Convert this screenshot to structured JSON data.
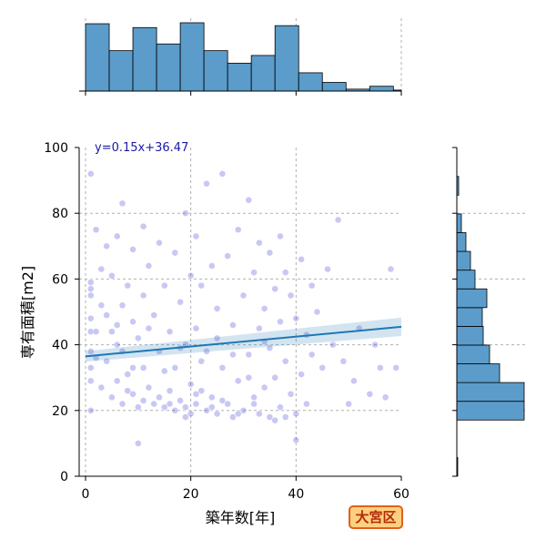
{
  "chart_data": {
    "type": "scatter",
    "title": "",
    "xlabel": "築年数[年]",
    "ylabel": "専有面積[m2]",
    "xlim": [
      0,
      60
    ],
    "ylim": [
      0,
      100
    ],
    "x_ticks": [
      0,
      20,
      40,
      60
    ],
    "y_ticks": [
      0,
      20,
      40,
      60,
      80,
      100
    ],
    "grid": true,
    "regression": {
      "label": "y=0.15x+36.47",
      "slope": 0.15,
      "intercept": 36.47
    },
    "point_color": "#3b3bd6",
    "line_color": "#1f77b4",
    "hist_color": "#5b9ccb",
    "x_histogram": {
      "bin_edges": [
        0,
        4.5,
        9,
        13.5,
        18,
        22.5,
        27,
        31.5,
        36,
        40.5,
        45,
        49.5,
        54,
        58.5,
        60
      ],
      "heights": [
        70,
        42,
        66,
        49,
        71,
        42,
        29,
        37,
        68,
        19,
        9,
        2,
        5,
        1
      ]
    },
    "y_histogram": {
      "bin_edges": [
        0,
        5.7,
        11.4,
        17.1,
        22.8,
        28.5,
        34.2,
        39.9,
        45.6,
        51.3,
        57,
        62.7,
        68.4,
        74.1,
        79.8,
        85.5,
        91.2,
        96.9
      ],
      "heights": [
        1,
        0,
        0,
        74,
        74,
        47,
        36,
        29,
        28,
        33,
        20,
        15,
        10,
        5,
        0,
        2,
        0
      ]
    },
    "points": [
      [
        1,
        92
      ],
      [
        1,
        59
      ],
      [
        1,
        57
      ],
      [
        1,
        55
      ],
      [
        1,
        48
      ],
      [
        1,
        44
      ],
      [
        1,
        38
      ],
      [
        1,
        33
      ],
      [
        1,
        29
      ],
      [
        1,
        20
      ],
      [
        2,
        75
      ],
      [
        2,
        44
      ],
      [
        2,
        36
      ],
      [
        3,
        63
      ],
      [
        3,
        27
      ],
      [
        4,
        70
      ],
      [
        4,
        49
      ],
      [
        4,
        35
      ],
      [
        5,
        61
      ],
      [
        5,
        44
      ],
      [
        5,
        24
      ],
      [
        6,
        73
      ],
      [
        6,
        46
      ],
      [
        6,
        29
      ],
      [
        7,
        83
      ],
      [
        7,
        52
      ],
      [
        7,
        38
      ],
      [
        7,
        22
      ],
      [
        8,
        58
      ],
      [
        8,
        31
      ],
      [
        9,
        69
      ],
      [
        9,
        47
      ],
      [
        9,
        25
      ],
      [
        10,
        10
      ],
      [
        10,
        42
      ],
      [
        10,
        21
      ],
      [
        11,
        76
      ],
      [
        11,
        55
      ],
      [
        11,
        33
      ],
      [
        12,
        64
      ],
      [
        12,
        27
      ],
      [
        13,
        49
      ],
      [
        13,
        22
      ],
      [
        14,
        71
      ],
      [
        14,
        38
      ],
      [
        15,
        58
      ],
      [
        15,
        21
      ],
      [
        16,
        44
      ],
      [
        16,
        26
      ],
      [
        17,
        68
      ],
      [
        17,
        33
      ],
      [
        17,
        20
      ],
      [
        18,
        53
      ],
      [
        18,
        23
      ],
      [
        19,
        80
      ],
      [
        19,
        40
      ],
      [
        19,
        18
      ],
      [
        20,
        61
      ],
      [
        20,
        28
      ],
      [
        20,
        19
      ],
      [
        21,
        73
      ],
      [
        21,
        45
      ],
      [
        21,
        22
      ],
      [
        22,
        58
      ],
      [
        22,
        26
      ],
      [
        23,
        89
      ],
      [
        23,
        38
      ],
      [
        23,
        20
      ],
      [
        24,
        64
      ],
      [
        24,
        24
      ],
      [
        25,
        51
      ],
      [
        25,
        19
      ],
      [
        26,
        92
      ],
      [
        26,
        33
      ],
      [
        27,
        67
      ],
      [
        27,
        22
      ],
      [
        28,
        46
      ],
      [
        28,
        18
      ],
      [
        29,
        75
      ],
      [
        29,
        29
      ],
      [
        30,
        55
      ],
      [
        30,
        20
      ],
      [
        31,
        84
      ],
      [
        31,
        37
      ],
      [
        32,
        62
      ],
      [
        32,
        24
      ],
      [
        33,
        71
      ],
      [
        33,
        45
      ],
      [
        33,
        19
      ],
      [
        34,
        51
      ],
      [
        34,
        27
      ],
      [
        35,
        68
      ],
      [
        35,
        39
      ],
      [
        35,
        18
      ],
      [
        36,
        57
      ],
      [
        36,
        30
      ],
      [
        36,
        17
      ],
      [
        37,
        73
      ],
      [
        37,
        47
      ],
      [
        37,
        21
      ],
      [
        38,
        62
      ],
      [
        38,
        35
      ],
      [
        38,
        18
      ],
      [
        39,
        55
      ],
      [
        39,
        25
      ],
      [
        40,
        11
      ],
      [
        40,
        48
      ],
      [
        40,
        19
      ],
      [
        41,
        66
      ],
      [
        41,
        31
      ],
      [
        42,
        43
      ],
      [
        42,
        22
      ],
      [
        43,
        58
      ],
      [
        43,
        37
      ],
      [
        44,
        50
      ],
      [
        45,
        33
      ],
      [
        46,
        63
      ],
      [
        47,
        40
      ],
      [
        48,
        78
      ],
      [
        49,
        35
      ],
      [
        50,
        22
      ],
      [
        51,
        29
      ],
      [
        52,
        45
      ],
      [
        54,
        25
      ],
      [
        55,
        40
      ],
      [
        56,
        33
      ],
      [
        57,
        24
      ],
      [
        58,
        63
      ],
      [
        59,
        33
      ],
      [
        3,
        52
      ],
      [
        6,
        40
      ],
      [
        9,
        33
      ],
      [
        12,
        45
      ],
      [
        15,
        32
      ],
      [
        18,
        39
      ],
      [
        22,
        35
      ],
      [
        25,
        42
      ],
      [
        28,
        37
      ],
      [
        31,
        30
      ],
      [
        34,
        41
      ],
      [
        8,
        26
      ],
      [
        11,
        23
      ],
      [
        14,
        24
      ],
      [
        16,
        22
      ],
      [
        19,
        21
      ],
      [
        21,
        25
      ],
      [
        24,
        21
      ],
      [
        26,
        23
      ],
      [
        29,
        19
      ],
      [
        32,
        22
      ]
    ]
  },
  "badge": {
    "label": "大宮区"
  }
}
